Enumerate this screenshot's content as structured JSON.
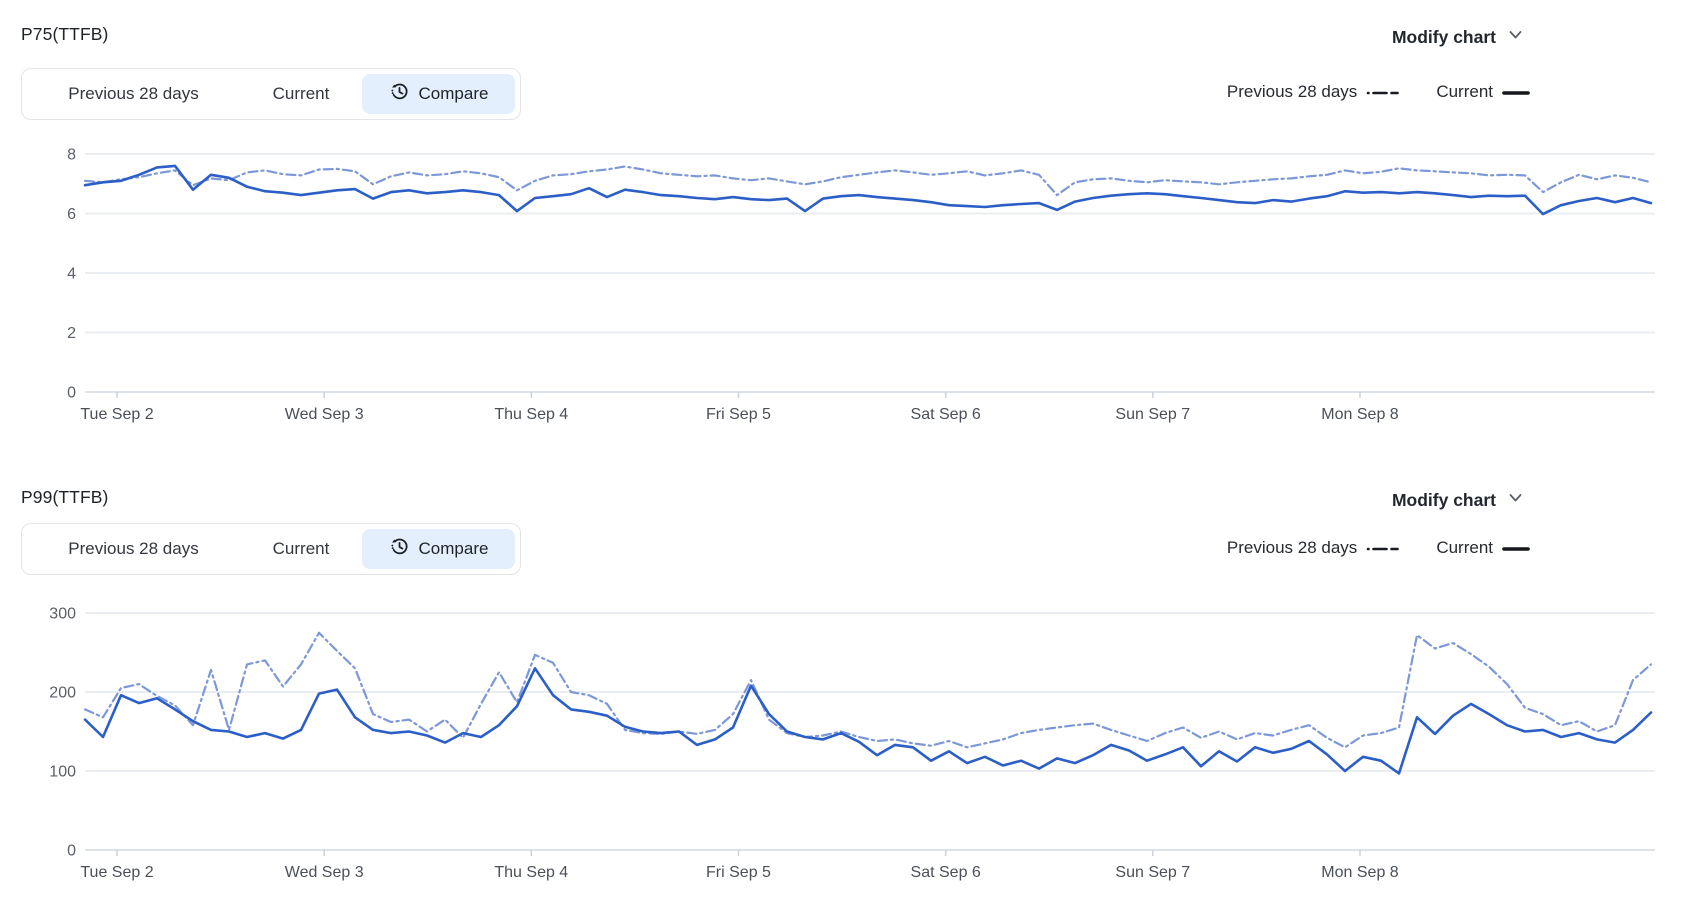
{
  "colors": {
    "current_line": "#2b5fc7",
    "previous_line": "#7c98d8",
    "selected_tab_bg": "#e3effc",
    "legend_swatch": "#171a20",
    "grid_line": "#eaedf2"
  },
  "charts": [
    {
      "title": "P75(TTFB)",
      "modify_chart": {
        "label": "Modify chart",
        "icon": "chevron-down-icon"
      },
      "tabs": [
        {
          "label": "Previous 28 days",
          "selected": false
        },
        {
          "label": "Current",
          "selected": false
        },
        {
          "label": "Compare",
          "selected": true,
          "icon": "history-icon"
        }
      ],
      "legend": [
        {
          "label": "Previous 28 days",
          "style": "dash-dot"
        },
        {
          "label": "Current",
          "style": "solid"
        }
      ],
      "chart_data": {
        "type": "line",
        "title": "P75(TTFB)",
        "xlabel": "",
        "ylabel": "",
        "ylim": [
          0,
          8
        ],
        "grid": true,
        "legend_position": "top-right",
        "ytick_values": [
          8,
          6,
          4,
          2,
          0
        ],
        "ytick_labels": [
          "8",
          "6",
          "4",
          "2",
          "0"
        ],
        "x_tick_labels": [
          "Tue Sep 2",
          "Wed Sep 3",
          "Thu Sep 4",
          "Fri Sep 5",
          "Sat Sep 6",
          "Sun Sep 7",
          "Mon Sep 8"
        ],
        "series": [
          {
            "name": "Previous 28 days",
            "style": "dash-dot",
            "color": "#7c98d8",
            "values": [
              7.1,
              7.05,
              7.15,
              7.22,
              7.35,
              7.45,
              6.95,
              7.18,
              7.12,
              7.38,
              7.45,
              7.32,
              7.28,
              7.48,
              7.5,
              7.42,
              6.98,
              7.25,
              7.38,
              7.28,
              7.32,
              7.42,
              7.35,
              7.22,
              6.78,
              7.1,
              7.28,
              7.32,
              7.42,
              7.48,
              7.58,
              7.48,
              7.35,
              7.3,
              7.25,
              7.28,
              7.18,
              7.12,
              7.18,
              7.08,
              6.98,
              7.08,
              7.22,
              7.3,
              7.38,
              7.45,
              7.38,
              7.3,
              7.35,
              7.42,
              7.28,
              7.35,
              7.45,
              7.3,
              6.62,
              7.05,
              7.15,
              7.18,
              7.1,
              7.05,
              7.12,
              7.08,
              7.05,
              6.98,
              7.05,
              7.1,
              7.15,
              7.18,
              7.25,
              7.3,
              7.45,
              7.35,
              7.4,
              7.52,
              7.45,
              7.42,
              7.38,
              7.35,
              7.28,
              7.3,
              7.28,
              6.72,
              7.05,
              7.3,
              7.15,
              7.28,
              7.2,
              7.05
            ]
          },
          {
            "name": "Current",
            "style": "solid",
            "color": "#2b5fc7",
            "values": [
              6.95,
              7.05,
              7.1,
              7.3,
              7.55,
              7.6,
              6.8,
              7.3,
              7.2,
              6.9,
              6.75,
              6.7,
              6.62,
              6.7,
              6.78,
              6.82,
              6.5,
              6.72,
              6.78,
              6.68,
              6.72,
              6.78,
              6.72,
              6.62,
              6.08,
              6.52,
              6.58,
              6.65,
              6.85,
              6.55,
              6.8,
              6.72,
              6.62,
              6.58,
              6.52,
              6.48,
              6.55,
              6.48,
              6.45,
              6.5,
              6.08,
              6.5,
              6.58,
              6.62,
              6.55,
              6.5,
              6.45,
              6.38,
              6.28,
              6.25,
              6.22,
              6.28,
              6.32,
              6.35,
              6.12,
              6.4,
              6.52,
              6.6,
              6.65,
              6.68,
              6.65,
              6.58,
              6.52,
              6.45,
              6.38,
              6.35,
              6.45,
              6.4,
              6.5,
              6.58,
              6.75,
              6.7,
              6.72,
              6.68,
              6.72,
              6.68,
              6.62,
              6.55,
              6.6,
              6.58,
              6.6,
              5.98,
              6.28,
              6.42,
              6.52,
              6.38,
              6.52,
              6.35
            ]
          }
        ]
      }
    },
    {
      "title": "P99(TTFB)",
      "modify_chart": {
        "label": "Modify chart",
        "icon": "chevron-down-icon"
      },
      "tabs": [
        {
          "label": "Previous 28 days",
          "selected": false
        },
        {
          "label": "Current",
          "selected": false
        },
        {
          "label": "Compare",
          "selected": true,
          "icon": "history-icon"
        }
      ],
      "legend": [
        {
          "label": "Previous 28 days",
          "style": "dash-dot"
        },
        {
          "label": "Current",
          "style": "solid"
        }
      ],
      "chart_data": {
        "type": "line",
        "title": "P99(TTFB)",
        "xlabel": "",
        "ylabel": "",
        "ylim": [
          0,
          300
        ],
        "grid": true,
        "legend_position": "top-right",
        "ytick_values": [
          300,
          200,
          100,
          0
        ],
        "ytick_labels": [
          "300",
          "200",
          "100",
          "0"
        ],
        "x_tick_labels": [
          "Tue Sep 2",
          "Wed Sep 3",
          "Thu Sep 4",
          "Fri Sep 5",
          "Sat Sep 6",
          "Sun Sep 7",
          "Mon Sep 8"
        ],
        "series": [
          {
            "name": "Previous 28 days",
            "style": "dash-dot",
            "color": "#7c98d8",
            "values": [
              178,
              168,
              205,
              210,
              195,
              183,
              158,
              228,
              152,
              235,
              240,
              207,
              235,
              275,
              252,
              230,
              172,
              162,
              165,
              150,
              165,
              142,
              185,
              225,
              187,
              247,
              237,
              200,
              196,
              185,
              152,
              148,
              147,
              150,
              147,
              152,
              172,
              215,
              165,
              148,
              143,
              145,
              150,
              143,
              138,
              140,
              135,
              132,
              138,
              130,
              135,
              140,
              148,
              152,
              155,
              158,
              160,
              152,
              145,
              138,
              148,
              155,
              142,
              150,
              140,
              148,
              145,
              152,
              158,
              142,
              130,
              145,
              148,
              155,
              272,
              255,
              262,
              248,
              232,
              210,
              180,
              172,
              158,
              163,
              150,
              158,
              215,
              235
            ]
          },
          {
            "name": "Current",
            "style": "solid",
            "color": "#2b5fc7",
            "values": [
              165,
              143,
              196,
              186,
              192,
              178,
              163,
              152,
              150,
              143,
              148,
              141,
              152,
              198,
              203,
              168,
              152,
              148,
              150,
              145,
              136,
              148,
              143,
              158,
              182,
              230,
              196,
              178,
              175,
              170,
              156,
              150,
              148,
              150,
              133,
              140,
              155,
              208,
              172,
              150,
              143,
              140,
              148,
              137,
              120,
              133,
              130,
              113,
              125,
              110,
              118,
              107,
              113,
              103,
              116,
              110,
              120,
              133,
              126,
              113,
              121,
              130,
              106,
              125,
              112,
              130,
              123,
              128,
              138,
              121,
              100,
              118,
              113,
              97,
              168,
              147,
              170,
              185,
              172,
              158,
              150,
              152,
              143,
              148,
              140,
              136,
              152,
              174
            ]
          }
        ]
      }
    }
  ]
}
